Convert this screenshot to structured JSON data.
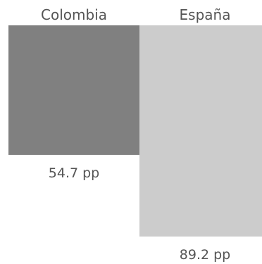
{
  "chart_data": {
    "type": "bar",
    "categories": [
      "Colombia",
      "España"
    ],
    "values": [
      54.7,
      89.2
    ],
    "value_labels": [
      "54.7 pp",
      "89.2 pp"
    ],
    "unit": "pp",
    "colors": [
      "#808080",
      "#cccccc"
    ],
    "title": "",
    "xlabel": "",
    "ylabel": "",
    "ylim": [
      0,
      89.2
    ],
    "grid": false,
    "legend": "none"
  }
}
